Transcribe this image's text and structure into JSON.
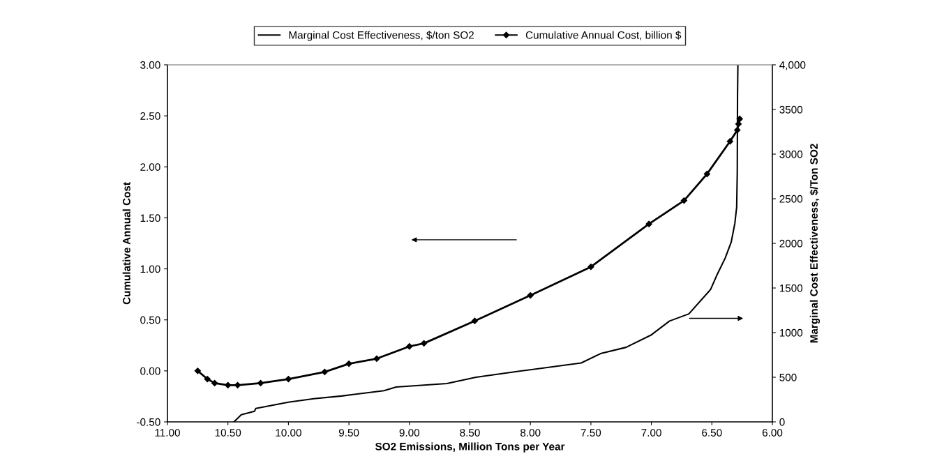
{
  "chart_data": {
    "type": "line",
    "xlabel": "SO2 Emissions, Million Tons per Year",
    "ylabel": "Cumulative Annual Cost",
    "y2label": "Marginal Cost Effectiveness, $/Ton SO2",
    "xlim": [
      11,
      6
    ],
    "xticks": [
      {
        "value": 11,
        "label": "11.00"
      },
      {
        "value": 10.5,
        "label": "10.50"
      },
      {
        "value": 10,
        "label": "10.00"
      },
      {
        "value": 9.5,
        "label": "9.50"
      },
      {
        "value": 9,
        "label": "9.00"
      },
      {
        "value": 8.5,
        "label": "8.50"
      },
      {
        "value": 8,
        "label": "8.00"
      },
      {
        "value": 7.5,
        "label": "7.50"
      },
      {
        "value": 7,
        "label": "7.00"
      },
      {
        "value": 6.5,
        "label": "6.50"
      },
      {
        "value": 6,
        "label": "6.00"
      }
    ],
    "ylim": [
      -0.5,
      3
    ],
    "yticks": [
      {
        "value": -0.5,
        "label": "-0.50"
      },
      {
        "value": 0,
        "label": "0.00"
      },
      {
        "value": 0.5,
        "label": "0.50"
      },
      {
        "value": 1,
        "label": "1.00"
      },
      {
        "value": 1.5,
        "label": "1.50"
      },
      {
        "value": 2,
        "label": "2.00"
      },
      {
        "value": 2.5,
        "label": "2.50"
      },
      {
        "value": 3,
        "label": "3.00"
      }
    ],
    "y2lim": [
      0,
      4000
    ],
    "y2ticks": [
      0,
      500,
      1000,
      1500,
      2000,
      2500,
      3000,
      3500,
      {
        "value": 4000,
        "label": "4,000"
      }
    ],
    "grid": false,
    "legend": "top",
    "series": [
      {
        "name": "Marginal Cost Effectiveness, $/ton SO2",
        "color": "#000000",
        "axis": "y2",
        "marker": "none",
        "x": [
          10.45,
          10.39,
          10.28,
          10.27,
          10.0,
          9.79,
          9.56,
          9.21,
          9.11,
          8.69,
          8.45,
          8.08,
          7.58,
          7.42,
          7.21,
          7.0,
          6.85,
          6.69,
          6.51,
          6.46,
          6.39,
          6.34,
          6.31,
          6.295,
          6.29,
          6.288,
          6.285
        ],
        "values": [
          0,
          80,
          120,
          150,
          220,
          260,
          290,
          350,
          390,
          430,
          500,
          570,
          660,
          765,
          835,
          975,
          1130,
          1210,
          1485,
          1640,
          1835,
          2015,
          2225,
          2405,
          2800,
          3630,
          4000
        ]
      },
      {
        "name": "Cumulative Annual Cost, billion $",
        "color": "#000000",
        "marker": "diamond",
        "x": [
          10.75,
          10.67,
          10.61,
          10.5,
          10.42,
          10.23,
          10.0,
          9.7,
          9.5,
          9.27,
          9.0,
          8.88,
          8.46,
          8.0,
          7.5,
          7.02,
          6.73,
          6.54,
          6.35,
          6.29,
          6.28,
          6.27
        ],
        "values": [
          0.0,
          -0.08,
          -0.12,
          -0.14,
          -0.14,
          -0.12,
          -0.08,
          -0.01,
          0.07,
          0.12,
          0.24,
          0.27,
          0.49,
          0.74,
          1.02,
          1.44,
          1.67,
          1.93,
          2.25,
          2.36,
          2.42,
          2.47
        ]
      }
    ]
  }
}
